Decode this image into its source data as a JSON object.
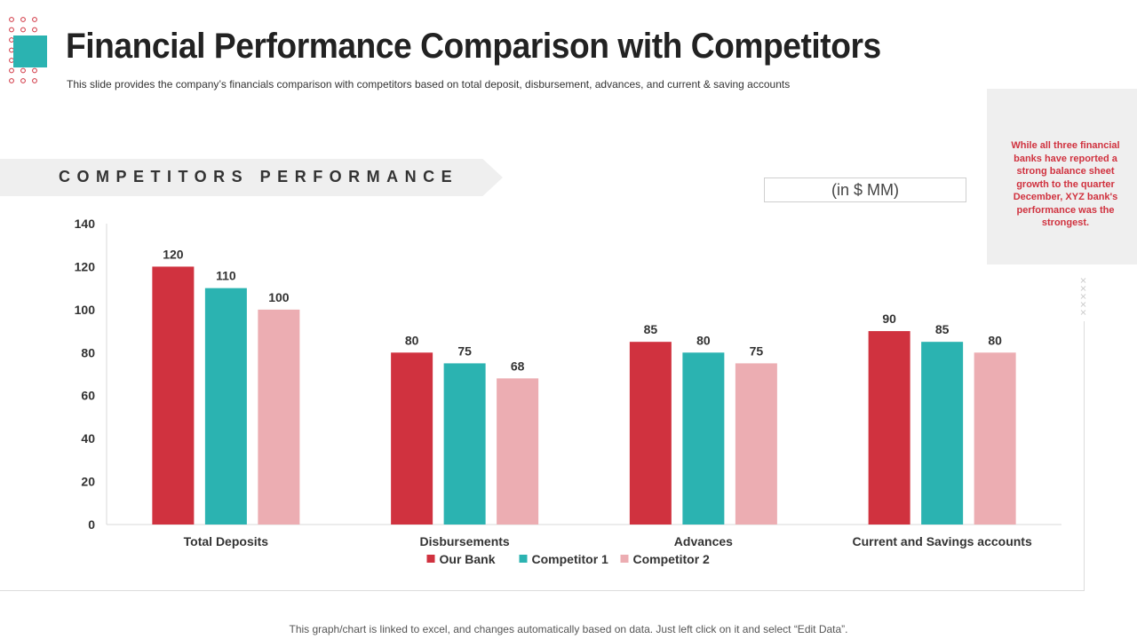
{
  "slide": {
    "title": "Financial Performance Comparison with Competitors",
    "subtitle": "This slide provides the company’s financials comparison with competitors based on total deposit, disbursement, advances, and current & saving accounts",
    "section_title": "COMPETITORS PERFORMANCE",
    "unit_label": "(in $ MM)",
    "callout": "While all three financial banks have reported a strong balance sheet growth to the quarter December, XYZ bank's performance was the strongest.",
    "footer": "This graph/chart is linked to excel, and changes automatically based on data. Just left click on it and select “Edit Data”."
  },
  "colors": {
    "accent_red": "#d0323f",
    "teal": "#2bb3b1",
    "pink": "#ecadb2",
    "banner_gray": "#efefef"
  },
  "chart_data": {
    "type": "bar",
    "categories": [
      "Total Deposits",
      "Disbursements",
      "Advances",
      "Current and Savings accounts"
    ],
    "series": [
      {
        "name": "Our Bank",
        "values": [
          120,
          80,
          85,
          90
        ],
        "color": "#d0323f"
      },
      {
        "name": "Competitor 1",
        "values": [
          110,
          75,
          80,
          85
        ],
        "color": "#2bb3b1"
      },
      {
        "name": "Competitor 2",
        "values": [
          100,
          68,
          75,
          80
        ],
        "color": "#ecadb2"
      }
    ],
    "ylim": [
      0,
      140
    ],
    "yticks": [
      0,
      20,
      40,
      60,
      80,
      100,
      120,
      140
    ],
    "data_labels": true,
    "grid": false,
    "legend": "bottom-center"
  }
}
